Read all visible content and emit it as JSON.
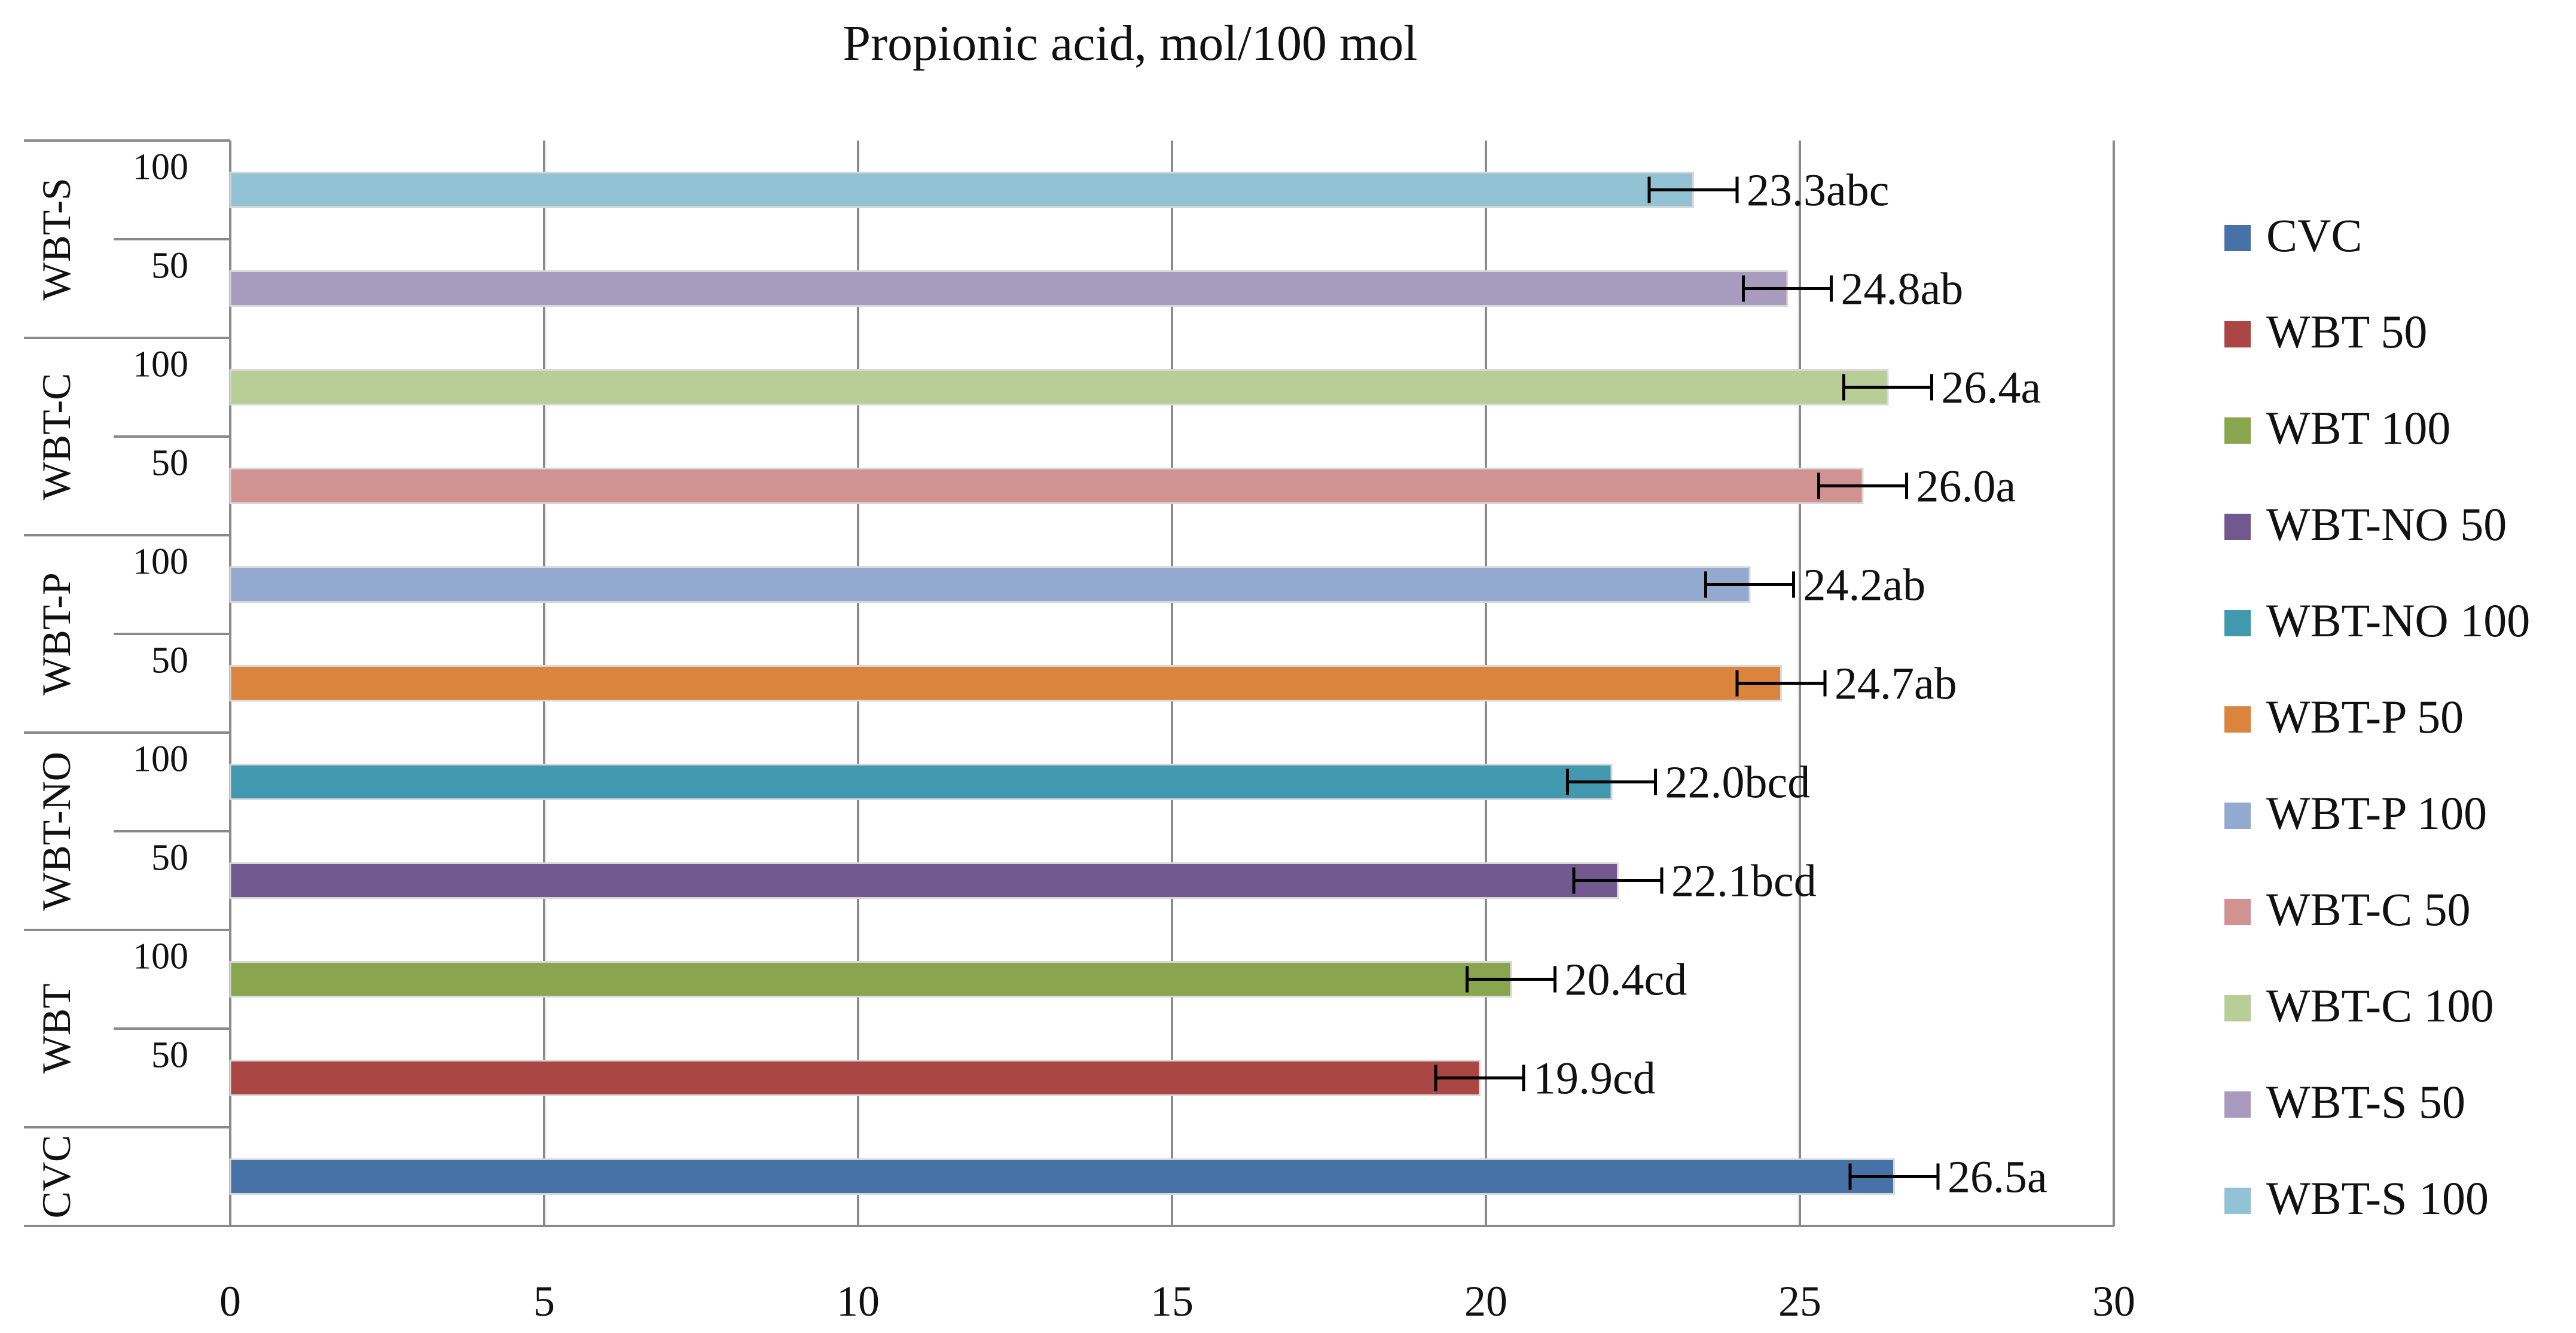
{
  "chart_data": {
    "type": "bar",
    "orientation": "horizontal",
    "title": "Propionic acid, mol/100 mol",
    "xlim": [
      0,
      30
    ],
    "x_ticks": [
      "0",
      "5",
      "10",
      "15",
      "20",
      "25",
      "30"
    ],
    "grid": true,
    "legend_position": "right",
    "groups": [
      "CVC",
      "WBT",
      "WBT-NO",
      "WBT-P",
      "WBT-C",
      "WBT-S"
    ],
    "bars": [
      {
        "group": "CVC",
        "sublabel": "",
        "series": "CVC",
        "value": 26.5,
        "error": 0.7,
        "label": "26.5a",
        "color": "#4672A8"
      },
      {
        "group": "WBT",
        "sublabel": "50",
        "series": "WBT 50",
        "value": 19.9,
        "error": 0.7,
        "label": "19.9cd",
        "color": "#AA4644"
      },
      {
        "group": "WBT",
        "sublabel": "100",
        "series": "WBT 100",
        "value": 20.4,
        "error": 0.7,
        "label": "20.4cd",
        "color": "#89A54E"
      },
      {
        "group": "WBT-NO",
        "sublabel": "50",
        "series": "WBT-NO 50",
        "value": 22.1,
        "error": 0.7,
        "label": "22.1bcd",
        "color": "#71588F"
      },
      {
        "group": "WBT-NO",
        "sublabel": "100",
        "series": "WBT-NO 100",
        "value": 22.0,
        "error": 0.7,
        "label": "22.0bcd",
        "color": "#4198AF"
      },
      {
        "group": "WBT-P",
        "sublabel": "50",
        "series": "WBT-P 50",
        "value": 24.7,
        "error": 0.7,
        "label": "24.7ab",
        "color": "#DB843D"
      },
      {
        "group": "WBT-P",
        "sublabel": "100",
        "series": "WBT-P 100",
        "value": 24.2,
        "error": 0.7,
        "label": "24.2ab",
        "color": "#93A9CF"
      },
      {
        "group": "WBT-C",
        "sublabel": "50",
        "series": "WBT-C 50",
        "value": 26.0,
        "error": 0.7,
        "label": "26.0a",
        "color": "#D19392"
      },
      {
        "group": "WBT-C",
        "sublabel": "100",
        "series": "WBT-C 100",
        "value": 26.4,
        "error": 0.7,
        "label": "26.4a",
        "color": "#B9CD96"
      },
      {
        "group": "WBT-S",
        "sublabel": "50",
        "series": "WBT-S 50",
        "value": 24.8,
        "error": 0.7,
        "label": "24.8ab",
        "color": "#A99BBD"
      },
      {
        "group": "WBT-S",
        "sublabel": "100",
        "series": "WBT-S 100",
        "value": 23.3,
        "error": 0.7,
        "label": "23.3abc",
        "color": "#91C3D5"
      }
    ],
    "legend": [
      {
        "label": "CVC",
        "color": "#4672A8"
      },
      {
        "label": "WBT 50",
        "color": "#AA4644"
      },
      {
        "label": "WBT 100",
        "color": "#89A54E"
      },
      {
        "label": "WBT-NO 50",
        "color": "#71588F"
      },
      {
        "label": "WBT-NO 100",
        "color": "#4198AF"
      },
      {
        "label": "WBT-P 50",
        "color": "#DB843D"
      },
      {
        "label": "WBT-P 100",
        "color": "#93A9CF"
      },
      {
        "label": "WBT-C 50",
        "color": "#D19392"
      },
      {
        "label": "WBT-C 100",
        "color": "#B9CD96"
      },
      {
        "label": "WBT-S 50",
        "color": "#A99BBD"
      },
      {
        "label": "WBT-S 100",
        "color": "#91C3D5"
      }
    ]
  }
}
